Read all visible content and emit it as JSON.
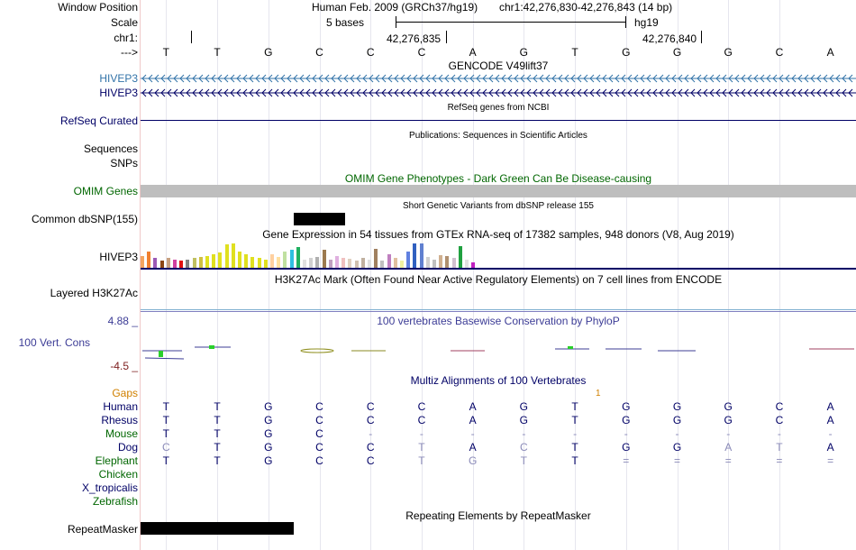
{
  "header": {
    "window_position_label": "Window Position",
    "scale_label": "Scale",
    "chrom_label": "chr1:",
    "strand_label": "--->",
    "assembly": "Human Feb. 2009 (GRCh37/hg19)",
    "position": "chr1:42,276,830-42,276,843 (14 bp)",
    "scale_text": "5 bases",
    "db": "hg19",
    "coord_1": "42,276,835",
    "coord_2": "42,276,840"
  },
  "reference_bases": [
    "T",
    "T",
    "G",
    "C",
    "C",
    "C",
    "A",
    "G",
    "T",
    "G",
    "G",
    "G",
    "C",
    "A"
  ],
  "tracks": {
    "gencode": {
      "title": "GENCODE V49lift37",
      "items": [
        "HIVEP3",
        "HIVEP3"
      ]
    },
    "refseq": {
      "title": "RefSeq genes from NCBI",
      "label": "RefSeq Curated"
    },
    "publications": {
      "title": "Publications: Sequences in Scientific Articles",
      "label": "Sequences"
    },
    "snps": {
      "label": "SNPs"
    },
    "omim": {
      "title": "OMIM Gene Phenotypes - Dark Green Can Be Disease-causing",
      "label": "OMIM Genes"
    },
    "dbsnp": {
      "title": "Short Genetic Variants from dbSNP release 155",
      "label": "Common dbSNP(155)"
    },
    "gtex": {
      "title": "Gene Expression in 54 tissues from GTEx RNA-seq of 17382 samples, 948 donors (V8, Aug 2019)",
      "label": "HIVEP3",
      "bars": [
        {
          "v": 0.44,
          "c": "#f4a460"
        },
        {
          "v": 0.6,
          "c": "#f08030"
        },
        {
          "v": 0.35,
          "c": "#9b59b6"
        },
        {
          "v": 0.25,
          "c": "#8b4513"
        },
        {
          "v": 0.35,
          "c": "#c8a080"
        },
        {
          "v": 0.3,
          "c": "#d040a0"
        },
        {
          "v": 0.26,
          "c": "#e01010"
        },
        {
          "v": 0.3,
          "c": "#808080"
        },
        {
          "v": 0.38,
          "c": "#c0c060"
        },
        {
          "v": 0.4,
          "c": "#d0c040"
        },
        {
          "v": 0.44,
          "c": "#e0e020"
        },
        {
          "v": 0.5,
          "c": "#e0e020"
        },
        {
          "v": 0.55,
          "c": "#e0e020"
        },
        {
          "v": 0.88,
          "c": "#e0e020"
        },
        {
          "v": 0.9,
          "c": "#e0e020"
        },
        {
          "v": 0.6,
          "c": "#e0e020"
        },
        {
          "v": 0.5,
          "c": "#e0e020"
        },
        {
          "v": 0.4,
          "c": "#e0e020"
        },
        {
          "v": 0.35,
          "c": "#e0e020"
        },
        {
          "v": 0.3,
          "c": "#e0e020"
        },
        {
          "v": 0.5,
          "c": "#ffd0a0"
        },
        {
          "v": 0.4,
          "c": "#ffe0a0"
        },
        {
          "v": 0.6,
          "c": "#c0e0a0"
        },
        {
          "v": 0.66,
          "c": "#30c0e0"
        },
        {
          "v": 0.75,
          "c": "#20b060"
        },
        {
          "v": 0.3,
          "c": "#e0e0e0"
        },
        {
          "v": 0.35,
          "c": "#d0d0d0"
        },
        {
          "v": 0.4,
          "c": "#b0b0b0"
        },
        {
          "v": 0.65,
          "c": "#9c7a50"
        },
        {
          "v": 0.3,
          "c": "#c0a0c0"
        },
        {
          "v": 0.42,
          "c": "#e0b0e0"
        },
        {
          "v": 0.36,
          "c": "#f0c0c0"
        },
        {
          "v": 0.33,
          "c": "#e0d0c0"
        },
        {
          "v": 0.28,
          "c": "#d0c0b0"
        },
        {
          "v": 0.38,
          "c": "#c0b0a0"
        },
        {
          "v": 0.3,
          "c": "#e0e0e0"
        },
        {
          "v": 0.7,
          "c": "#a08060"
        },
        {
          "v": 0.25,
          "c": "#c0c0c0"
        },
        {
          "v": 0.5,
          "c": "#c080c0"
        },
        {
          "v": 0.35,
          "c": "#e0c0a0"
        },
        {
          "v": 0.26,
          "c": "#f0f0a0"
        },
        {
          "v": 0.6,
          "c": "#6080e0"
        },
        {
          "v": 0.9,
          "c": "#3060c0"
        },
        {
          "v": 0.9,
          "c": "#6080d0"
        },
        {
          "v": 0.4,
          "c": "#d0d0d0"
        },
        {
          "v": 0.3,
          "c": "#c0c0c0"
        },
        {
          "v": 0.45,
          "c": "#d0b090"
        },
        {
          "v": 0.42,
          "c": "#b09070"
        },
        {
          "v": 0.38,
          "c": "#d0c0d0"
        },
        {
          "v": 0.8,
          "c": "#20a040"
        },
        {
          "v": 0.3,
          "c": "#e0e0e0"
        },
        {
          "v": 0.2,
          "c": "#c020c0"
        }
      ]
    },
    "h3k27ac": {
      "title": "H3K27Ac Mark (Often Found Near Active Regulatory Elements) on 7 cell lines from ENCODE",
      "label": "Layered H3K27Ac"
    },
    "phylop": {
      "title": "100 vertebrates Basewise Conservation by PhyloP",
      "label": "100 Vert. Cons",
      "max": "4.88 _",
      "min": "-4.5 _"
    },
    "multiz": {
      "title": "Multiz Alignments of 100 Vertebrates",
      "gaps_label": "Gaps",
      "gap_count": "1",
      "species": [
        {
          "name": "Human",
          "color": "#000066",
          "bases": [
            "T",
            "T",
            "G",
            "C",
            "C",
            "C",
            "A",
            "G",
            "T",
            "G",
            "G",
            "G",
            "C",
            "A"
          ]
        },
        {
          "name": "Rhesus",
          "color": "#000066",
          "bases": [
            "T",
            "T",
            "G",
            "C",
            "C",
            "C",
            "A",
            "G",
            "T",
            "G",
            "G",
            "G",
            "C",
            "A"
          ]
        },
        {
          "name": "Mouse",
          "color": "#006600",
          "bases": [
            "T",
            "T",
            "G",
            "C",
            "-",
            "-",
            "-",
            "-",
            "-",
            "-",
            "-",
            "-",
            "-",
            "-"
          ]
        },
        {
          "name": "Dog",
          "color": "#000066",
          "bases": [
            "C",
            "T",
            "G",
            "C",
            "C",
            "T",
            "A",
            "C",
            "T",
            "G",
            "G",
            "A",
            "T",
            "A"
          ]
        },
        {
          "name": "Elephant",
          "color": "#006600",
          "bases": [
            "T",
            "T",
            "G",
            "C",
            "C",
            "T",
            "G",
            "T",
            "T",
            "=",
            "=",
            "=",
            "=",
            "="
          ]
        },
        {
          "name": "Chicken",
          "color": "#006600",
          "bases": []
        },
        {
          "name": "X_tropicalis",
          "color": "#000066",
          "bases": []
        },
        {
          "name": "Zebrafish",
          "color": "#006600",
          "bases": []
        }
      ]
    },
    "repeatmasker": {
      "title": "Repeating Elements by RepeatMasker",
      "label": "RepeatMasker"
    }
  },
  "colors": {
    "gencode_blue": "#3273a8",
    "navy": "#000066",
    "omim_green": "#006600",
    "phylop_blue": "#3c3c96",
    "phylop_red": "#7c1c1c",
    "gaps_orange": "#d08000"
  }
}
